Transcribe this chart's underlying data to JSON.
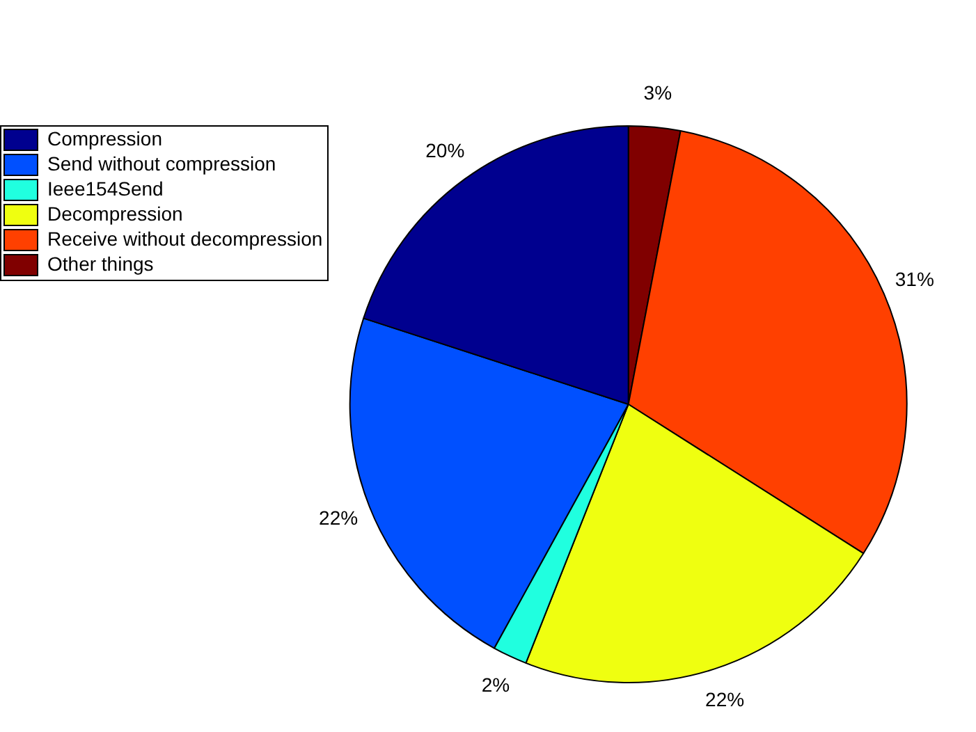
{
  "chart_data": {
    "type": "pie",
    "categories": [
      "Compression",
      "Send without compression",
      "Ieee154Send",
      "Decompression",
      "Receive without decompression",
      "Other things"
    ],
    "values": [
      20,
      22,
      2,
      22,
      31,
      3
    ],
    "colors": [
      "#00008f",
      "#0050ff",
      "#20ffdf",
      "#efff10",
      "#ff4000",
      "#800000"
    ],
    "value_labels": [
      "20%",
      "22%",
      "2%",
      "22%",
      "31%",
      "3%"
    ],
    "legend": "top left"
  }
}
